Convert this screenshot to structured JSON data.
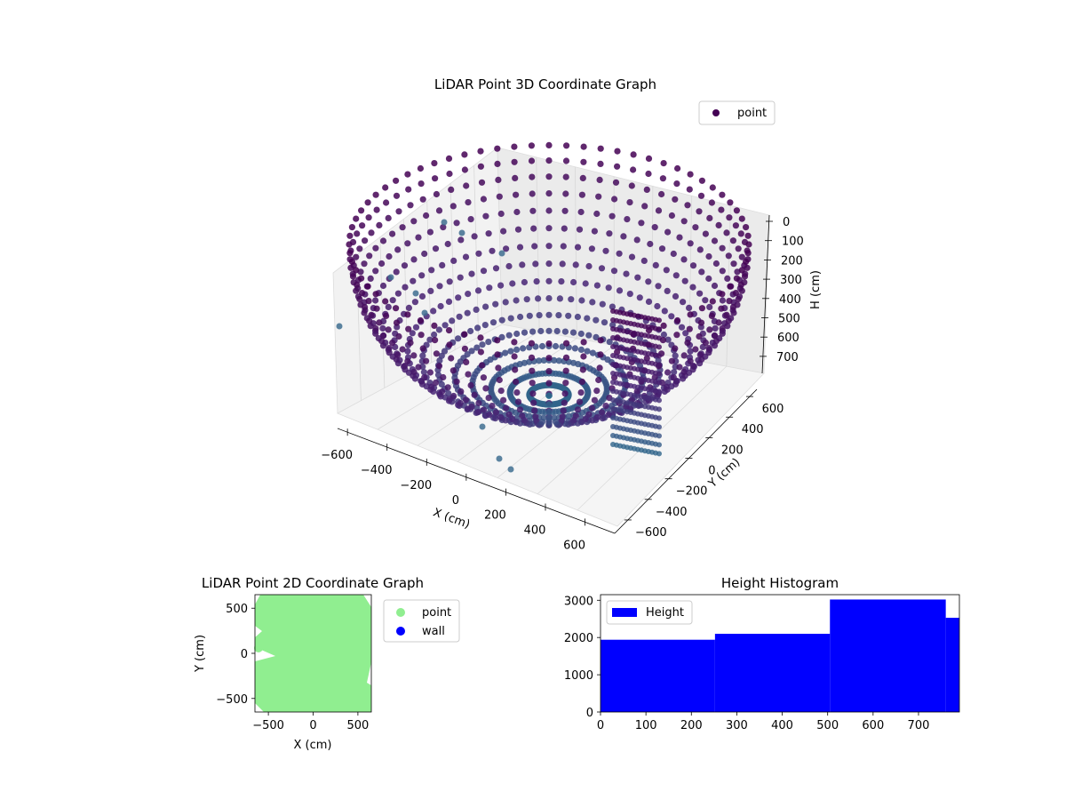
{
  "chart_data": [
    {
      "type": "scatter3d",
      "title": "LiDAR Point 3D Coordinate Graph",
      "xlabel": "X (cm)",
      "ylabel": "Y (cm)",
      "zlabel": "H (cm)",
      "x_ticks": [
        "−600",
        "−400",
        "−200",
        "0",
        "200",
        "400",
        "600"
      ],
      "y_ticks": [
        "600",
        "400",
        "200",
        "0",
        "−200",
        "−400",
        "−600"
      ],
      "z_ticks": [
        "0",
        "100",
        "200",
        "300",
        "400",
        "500",
        "600",
        "700"
      ],
      "xlim": [
        -650,
        650
      ],
      "ylim": [
        -650,
        650
      ],
      "zlim": [
        0,
        780
      ],
      "z_inverted": true,
      "legend": [
        "point"
      ],
      "legend_position": "upper-right",
      "colormap": "viridis",
      "colors": {
        "point_marker": "#440154",
        "deep": "#2e6e8e",
        "shallow": "#482575"
      }
    },
    {
      "type": "scatter",
      "title": "LiDAR Point 2D Coordinate Graph",
      "xlabel": "X (cm)",
      "ylabel": "Y (cm)",
      "x_ticks": [
        "−500",
        "0",
        "500"
      ],
      "y_ticks": [
        "500",
        "0",
        "−500"
      ],
      "xlim": [
        -650,
        650
      ],
      "ylim": [
        -650,
        650
      ],
      "legend": [
        "point",
        "wall"
      ],
      "legend_position": "outside-right",
      "colors": {
        "point": "#90ee90",
        "wall": "#0000ff"
      }
    },
    {
      "type": "bar",
      "title": "Height Histogram",
      "x_ticks": [
        "0",
        "100",
        "200",
        "300",
        "400",
        "500",
        "600",
        "700"
      ],
      "y_ticks": [
        "0",
        "1000",
        "2000",
        "3000"
      ],
      "xlim": [
        0,
        790
      ],
      "ylim": [
        0,
        3150
      ],
      "legend": [
        "Height"
      ],
      "legend_position": "upper-left",
      "bins": [
        {
          "start": 0,
          "end": 252,
          "value": 1940
        },
        {
          "start": 252,
          "end": 505,
          "value": 2100
        },
        {
          "start": 505,
          "end": 760,
          "value": 3020
        },
        {
          "start": 760,
          "end": 790,
          "value": 2530
        }
      ],
      "colors": {
        "bar": "#0000ff"
      }
    }
  ]
}
